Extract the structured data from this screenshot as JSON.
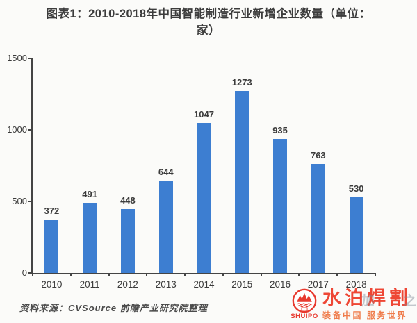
{
  "title": {
    "line1": "图表1：2010-2018年中国智能制造行业新增企业数量（单位：",
    "line2": "家）"
  },
  "chart_data": {
    "type": "bar",
    "title": "图表1：2010-2018年中国智能制造行业新增企业数量（单位：家）",
    "categories": [
      "2010",
      "2011",
      "2012",
      "2013",
      "2014",
      "2015",
      "2016",
      "2017",
      "2018"
    ],
    "values": [
      372,
      491,
      448,
      644,
      1047,
      1273,
      935,
      763,
      530
    ],
    "xlabel": "",
    "ylabel": "",
    "ylim": [
      0,
      1500
    ],
    "yticks": [
      0,
      500,
      1000,
      1500
    ],
    "grid": false,
    "legend": "none",
    "bar_color": "#3d7ed1",
    "axis_color": "#444444",
    "label_color": "#3b3b3b"
  },
  "footer": {
    "source": "资料来源：CVSource 前瞻产业研究院整理"
  },
  "watermark": {
    "logo_text": "SHUIPO",
    "brand_text": "水泊焊割",
    "faint_chars": [
      "加",
      "之"
    ],
    "tagline": "装备中国 服务世界",
    "brand_color": "#ee4735",
    "tagline_color": "#ef7c4b",
    "logo_color": "#e8392e"
  }
}
